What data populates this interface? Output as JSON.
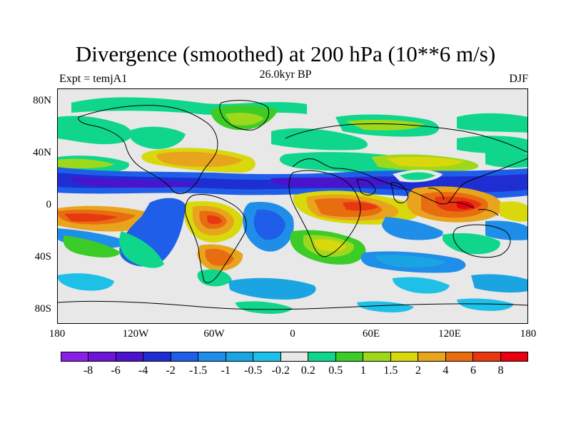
{
  "title": "Divergence (smoothed) at 200 hPa (10**6 m/s)",
  "left_label": "Expt = temjA1",
  "center_label": "26.0kyr BP",
  "right_label": "DJF",
  "y_ticks": [
    "80N",
    "40N",
    "0",
    "40S",
    "80S"
  ],
  "x_ticks": [
    "180",
    "120W",
    "60W",
    "0",
    "60E",
    "120E",
    "180"
  ],
  "colorbar": {
    "colors": [
      "#8a1fe6",
      "#6e15d8",
      "#4a13cc",
      "#1f2ed2",
      "#1f5ee8",
      "#1f8ee8",
      "#1aa5e2",
      "#1fc0e8",
      "#e8e8e8",
      "#10d68c",
      "#3ccc28",
      "#9ed81c",
      "#d8d80c",
      "#e8a41c",
      "#e86c10",
      "#e83810",
      "#e80010"
    ],
    "labels": [
      "-8",
      "-6",
      "-4",
      "-2",
      "-1.5",
      "-1",
      "-0.5",
      "-0.2",
      "0.2",
      "0.5",
      "1",
      "1.5",
      "2",
      "4",
      "6",
      "8"
    ]
  }
}
